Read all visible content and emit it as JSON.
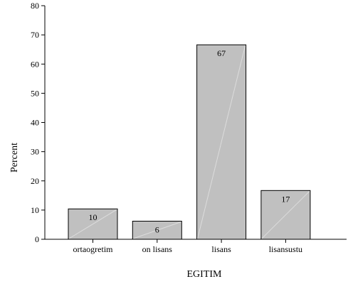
{
  "chart_data": {
    "type": "bar",
    "categories": [
      "ortaogretim",
      "on lisans",
      "lisans",
      "lisansustu"
    ],
    "values": [
      10.4,
      6.2,
      66.6,
      16.7
    ],
    "data_labels": [
      "10",
      "6",
      "67",
      "17"
    ],
    "xlabel": "EGITIM",
    "ylabel": "Percent",
    "ylim": [
      0,
      80
    ],
    "yticks": [
      0,
      10,
      20,
      30,
      40,
      50,
      60,
      70,
      80
    ],
    "grid": false,
    "bar_color": "#c0c0c0",
    "bar_edge_color": "#000000",
    "bar_diagonal_color": "#dcdcdc"
  }
}
